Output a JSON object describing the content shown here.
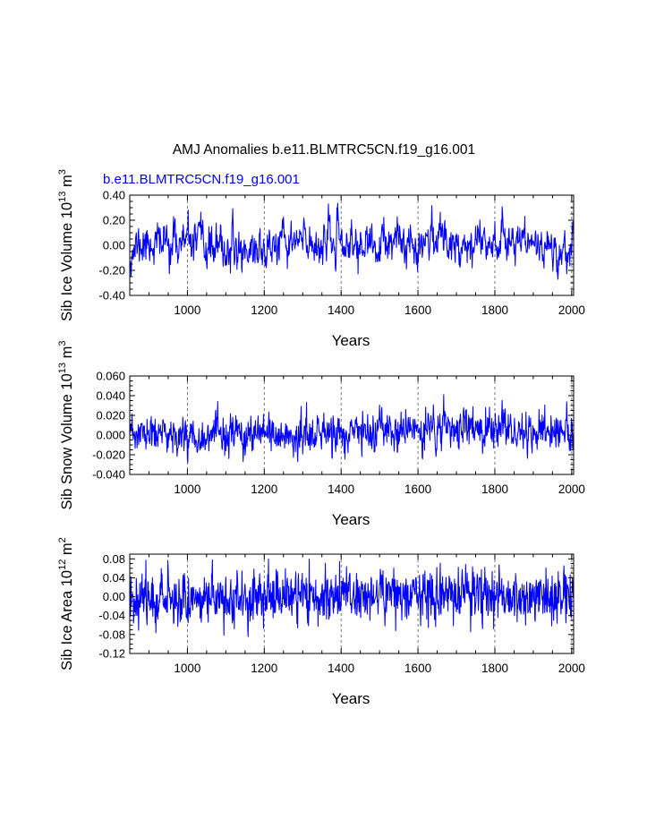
{
  "title": "AMJ Anomalies b.e11.BLMTRC5CN.f19_g16.001",
  "series_color": "#0000ff",
  "chart_data": [
    {
      "type": "line",
      "series_label": "b.e11.BLMTRC5CN.f19_g16.001",
      "ylabel": {
        "base": "Sib Ice Volume 10",
        "exp1": "13",
        "unit": " m",
        "exp2": "3"
      },
      "xlabel": "Years",
      "xlim": [
        850,
        2005
      ],
      "ylim": [
        -0.4,
        0.4
      ],
      "xticks": [
        1000,
        1200,
        1400,
        1600,
        1800,
        2000
      ],
      "xtick_labels": [
        "1000",
        "1200",
        "1400",
        "1600",
        "1800",
        "2000"
      ],
      "yticks": [
        -0.4,
        -0.2,
        0.0,
        0.2,
        0.4
      ],
      "ytick_labels": [
        "-0.40",
        "-0.20",
        "0.00",
        "0.20",
        "0.40"
      ],
      "grid": "vertical dashed at x ticks",
      "generation": {
        "start": 850,
        "end": 2005,
        "sd": 0.085,
        "ar": 0.55,
        "seed": 11,
        "lowfreq": [
          [
            850,
            -0.04
          ],
          [
            900,
            0.02
          ],
          [
            1000,
            0.02
          ],
          [
            1100,
            -0.04
          ],
          [
            1200,
            -0.03
          ],
          [
            1300,
            0.03
          ],
          [
            1400,
            0.01
          ],
          [
            1500,
            -0.02
          ],
          [
            1600,
            0.04
          ],
          [
            1650,
            0.08
          ],
          [
            1700,
            0.02
          ],
          [
            1800,
            0.06
          ],
          [
            1900,
            0.03
          ],
          [
            1960,
            -0.05
          ],
          [
            2005,
            -0.02
          ]
        ]
      }
    },
    {
      "type": "line",
      "series_label": "",
      "ylabel": {
        "base": "Sib Snow Volume 10",
        "exp1": "13",
        "unit": " m",
        "exp2": "3"
      },
      "xlabel": "Years",
      "xlim": [
        850,
        2005
      ],
      "ylim": [
        -0.04,
        0.06
      ],
      "xticks": [
        1000,
        1200,
        1400,
        1600,
        1800,
        2000
      ],
      "xtick_labels": [
        "1000",
        "1200",
        "1400",
        "1600",
        "1800",
        "2000"
      ],
      "yticks": [
        -0.04,
        -0.02,
        0.0,
        0.02,
        0.04,
        0.06
      ],
      "ytick_labels": [
        "-0.040",
        "-0.020",
        "0.000",
        "0.020",
        "0.040",
        "0.060"
      ],
      "grid": "vertical dashed at x ticks",
      "generation": {
        "start": 850,
        "end": 2005,
        "sd": 0.0095,
        "ar": 0.3,
        "seed": 23,
        "lowfreq": [
          [
            850,
            0.0
          ],
          [
            1000,
            0.0
          ],
          [
            1200,
            -0.002
          ],
          [
            1400,
            0.001
          ],
          [
            1600,
            0.004
          ],
          [
            1700,
            0.008
          ],
          [
            1800,
            0.005
          ],
          [
            1900,
            0.004
          ],
          [
            2005,
            0.003
          ]
        ]
      }
    },
    {
      "type": "line",
      "series_label": "",
      "ylabel": {
        "base": "Sib Ice Area 10",
        "exp1": "12",
        "unit": " m",
        "exp2": "2"
      },
      "xlabel": "Years",
      "xlim": [
        850,
        2005
      ],
      "ylim": [
        -0.12,
        0.09
      ],
      "xticks": [
        1000,
        1200,
        1400,
        1600,
        1800,
        2000
      ],
      "xtick_labels": [
        "1000",
        "1200",
        "1400",
        "1600",
        "1800",
        "2000"
      ],
      "yticks": [
        -0.12,
        -0.08,
        -0.04,
        0.0,
        0.04,
        0.08
      ],
      "ytick_labels": [
        "-0.12",
        "-0.08",
        "-0.04",
        "0.00",
        "0.04",
        "0.08"
      ],
      "grid": "vertical dashed at x ticks",
      "generation": {
        "start": 850,
        "end": 2005,
        "sd": 0.027,
        "ar": 0.15,
        "seed": 37,
        "lowfreq": [
          [
            850,
            0.0
          ],
          [
            1100,
            -0.005
          ],
          [
            1300,
            0.002
          ],
          [
            1600,
            0.006
          ],
          [
            1700,
            0.004
          ],
          [
            1900,
            0.0
          ],
          [
            2005,
            -0.005
          ]
        ]
      }
    }
  ]
}
